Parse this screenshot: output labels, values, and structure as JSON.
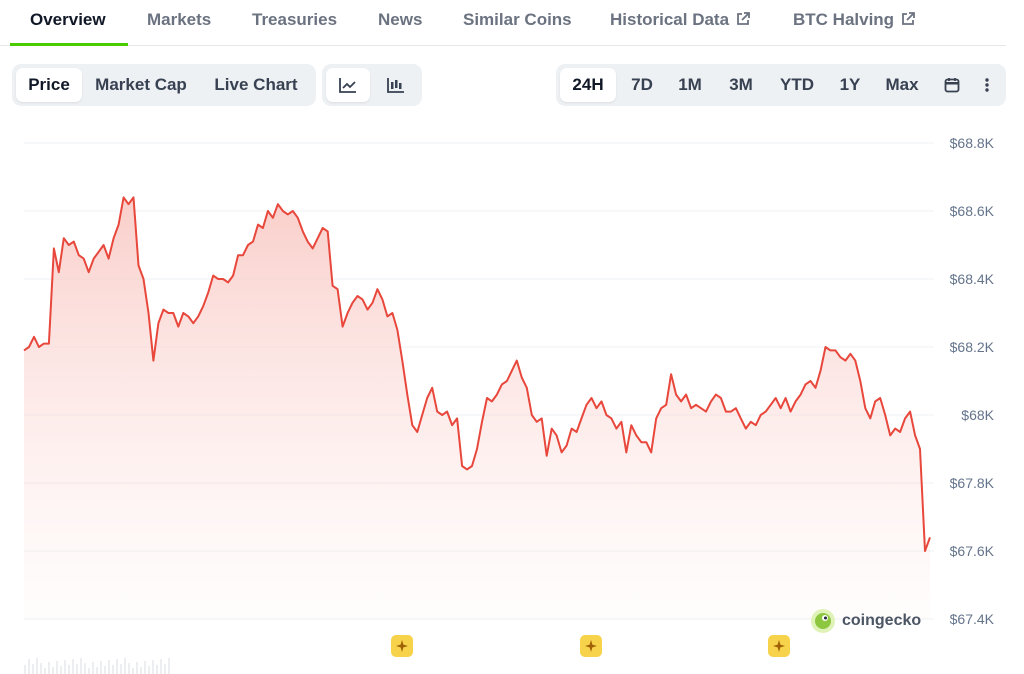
{
  "tabs": [
    {
      "label": "Overview",
      "active": true
    },
    {
      "label": "Markets"
    },
    {
      "label": "Treasuries"
    },
    {
      "label": "News"
    },
    {
      "label": "Similar Coins"
    },
    {
      "label": "Historical Data",
      "external": true
    },
    {
      "label": "BTC Halving",
      "external": true
    }
  ],
  "chart_type_toggle": {
    "options": [
      "Price",
      "Market Cap",
      "Live Chart"
    ],
    "selected": "Price"
  },
  "view_toggle": {
    "icons": [
      "line-chart-icon",
      "candlestick-icon"
    ],
    "selected": "line-chart-icon"
  },
  "range_toggle": {
    "options": [
      "24H",
      "7D",
      "1M",
      "3M",
      "YTD",
      "1Y",
      "Max"
    ],
    "selected": "24H",
    "extra_icons": [
      "calendar-icon",
      "more-options-icon"
    ]
  },
  "watermark": {
    "text": "coingecko"
  },
  "colors": {
    "line": "#e8473c",
    "area_top": "#f9c9c4",
    "accent_tab": "#4bcc00",
    "marker": "#f7d24b"
  },
  "chart_data": {
    "type": "area",
    "y_tick_labels": [
      "$68.8K",
      "$68.6K",
      "$68.4K",
      "$68.2K",
      "$68K",
      "$67.8K",
      "$67.6K",
      "$67.4K"
    ],
    "y_ticks": [
      68800,
      68600,
      68400,
      68200,
      68000,
      67800,
      67600,
      67400
    ],
    "ylim": [
      67400,
      68800
    ],
    "grid": true,
    "series": [
      {
        "values": [
          68190,
          68200,
          68230,
          68200,
          68210,
          68210,
          68490,
          68420,
          68520,
          68500,
          68510,
          68470,
          68460,
          68420,
          68460,
          68480,
          68500,
          68460,
          68520,
          68560,
          68640,
          68620,
          68640,
          68440,
          68400,
          68300,
          68160,
          68270,
          68310,
          68300,
          68300,
          68260,
          68300,
          68290,
          68270,
          68290,
          68320,
          68360,
          68410,
          68400,
          68400,
          68390,
          68410,
          68470,
          68470,
          68500,
          68510,
          68560,
          68550,
          68600,
          68580,
          68620,
          68600,
          68590,
          68600,
          68580,
          68540,
          68510,
          68490,
          68520,
          68550,
          68540,
          68380,
          68370,
          68260,
          68300,
          68330,
          68350,
          68340,
          68310,
          68330,
          68370,
          68340,
          68290,
          68300,
          68250,
          68160,
          68060,
          67970,
          67950,
          68000,
          68050,
          68080,
          68010,
          68000,
          68010,
          67970,
          67990,
          67850,
          67840,
          67850,
          67900,
          67980,
          68050,
          68040,
          68060,
          68090,
          68100,
          68130,
          68160,
          68110,
          68080,
          68000,
          67980,
          67990,
          67880,
          67960,
          67940,
          67890,
          67910,
          67960,
          67950,
          67990,
          68030,
          68050,
          68020,
          68040,
          68000,
          67990,
          67960,
          67980,
          67890,
          67970,
          67940,
          67920,
          67920,
          67890,
          67990,
          68020,
          68030,
          68120,
          68060,
          68040,
          68060,
          68020,
          68030,
          68020,
          68010,
          68040,
          68060,
          68050,
          68010,
          68010,
          68020,
          67990,
          67960,
          67980,
          67970,
          68000,
          68010,
          68030,
          68050,
          68020,
          68050,
          68010,
          68040,
          68060,
          68090,
          68100,
          68080,
          68130,
          68200,
          68190,
          68190,
          68170,
          68160,
          68180,
          68160,
          68100,
          68020,
          67990,
          68040,
          68050,
          68000,
          67940,
          67960,
          67950,
          67990,
          68010,
          67940,
          67900,
          67600,
          67640
        ]
      }
    ],
    "markers": 3
  }
}
